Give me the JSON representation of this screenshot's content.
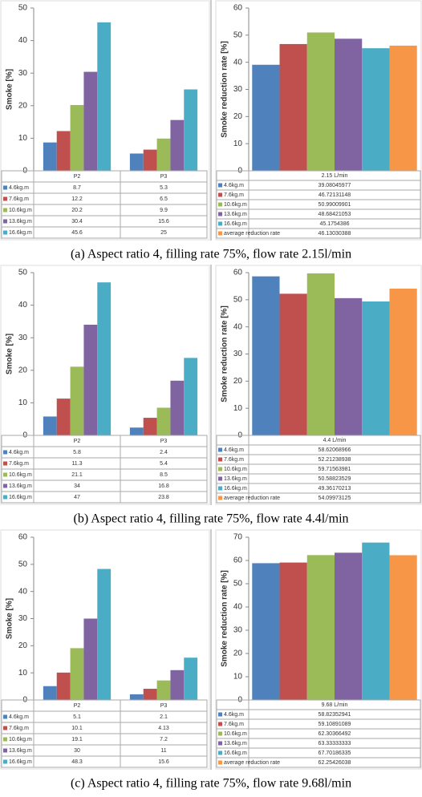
{
  "chart_data": [
    {
      "type": "bar",
      "ylabel": "Smoke [%]",
      "categories": [
        "P2",
        "P3"
      ],
      "ylim": [
        0,
        50
      ],
      "yticks": [
        0,
        10,
        20,
        30,
        40,
        50
      ],
      "series": [
        {
          "name": "4.6kg.m",
          "color": "#4f81bd",
          "values": [
            8.7,
            5.3
          ]
        },
        {
          "name": "7.6kg.m",
          "color": "#c0504d",
          "values": [
            12.2,
            6.5
          ]
        },
        {
          "name": "10.6kg.m",
          "color": "#9bbb59",
          "values": [
            20.2,
            9.9
          ]
        },
        {
          "name": "13.6kg.m",
          "color": "#8064a2",
          "values": [
            30.4,
            15.6
          ]
        },
        {
          "name": "16.6kg.m",
          "color": "#4bacc6",
          "values": [
            45.6,
            25
          ]
        }
      ]
    },
    {
      "type": "bar",
      "ylabel": "Smoke reduction rate [%]",
      "categories": [
        "2.15 L/min"
      ],
      "ylim": [
        0,
        60
      ],
      "yticks": [
        0,
        10,
        20,
        30,
        40,
        50,
        60
      ],
      "series": [
        {
          "name": "4.6kg.m",
          "color": "#4f81bd",
          "values": [
            39.08045977
          ]
        },
        {
          "name": "7.6kg.m",
          "color": "#c0504d",
          "values": [
            46.72131148
          ]
        },
        {
          "name": "10.6kg.m",
          "color": "#9bbb59",
          "values": [
            50.99009901
          ]
        },
        {
          "name": "13.6kg.m",
          "color": "#8064a2",
          "values": [
            48.68421053
          ]
        },
        {
          "name": "16.6kg.m",
          "color": "#4bacc6",
          "values": [
            45.1754386
          ]
        },
        {
          "name": "average reduction rate",
          "color": "#f79646",
          "values": [
            46.13030388
          ]
        }
      ]
    },
    {
      "type": "bar",
      "ylabel": "Smoke [%]",
      "categories": [
        "P2",
        "P3"
      ],
      "ylim": [
        0,
        50
      ],
      "yticks": [
        0,
        10,
        20,
        30,
        40,
        50
      ],
      "series": [
        {
          "name": "4.6kg.m",
          "color": "#4f81bd",
          "values": [
            5.8,
            2.4
          ]
        },
        {
          "name": "7.6kg.m",
          "color": "#c0504d",
          "values": [
            11.3,
            5.4
          ]
        },
        {
          "name": "10.6kg.m",
          "color": "#9bbb59",
          "values": [
            21.1,
            8.5
          ]
        },
        {
          "name": "13.6kg.m",
          "color": "#8064a2",
          "values": [
            34,
            16.8
          ]
        },
        {
          "name": "16.6kg.m",
          "color": "#4bacc6",
          "values": [
            47,
            23.8
          ]
        }
      ]
    },
    {
      "type": "bar",
      "ylabel": "Smoke reduction rate [%]",
      "categories": [
        "4.4 L/min"
      ],
      "ylim": [
        0,
        60
      ],
      "yticks": [
        0,
        10,
        20,
        30,
        40,
        50,
        60
      ],
      "series": [
        {
          "name": "4.6kg.m",
          "color": "#4f81bd",
          "values": [
            58.62068966
          ]
        },
        {
          "name": "7.6kg.m",
          "color": "#c0504d",
          "values": [
            52.21238938
          ]
        },
        {
          "name": "10.6kg.m",
          "color": "#9bbb59",
          "values": [
            59.71563981
          ]
        },
        {
          "name": "13.6kg.m",
          "color": "#8064a2",
          "values": [
            50.58823529
          ]
        },
        {
          "name": "16.6kg.m",
          "color": "#4bacc6",
          "values": [
            49.36170213
          ]
        },
        {
          "name": "average reduction rate",
          "color": "#f79646",
          "values": [
            54.09973125
          ]
        }
      ]
    },
    {
      "type": "bar",
      "ylabel": "Smoke [%]",
      "categories": [
        "P2",
        "P3"
      ],
      "ylim": [
        0,
        60
      ],
      "yticks": [
        0,
        10,
        20,
        30,
        40,
        50,
        60
      ],
      "series": [
        {
          "name": "4.6kg.m",
          "color": "#4f81bd",
          "values": [
            5.1,
            2.1
          ]
        },
        {
          "name": "7.6kg.m",
          "color": "#c0504d",
          "values": [
            10.1,
            4.13
          ]
        },
        {
          "name": "10.6kg.m",
          "color": "#9bbb59",
          "values": [
            19.1,
            7.2
          ]
        },
        {
          "name": "13.6kg.m",
          "color": "#8064a2",
          "values": [
            30,
            11
          ]
        },
        {
          "name": "16.6kg.m",
          "color": "#4bacc6",
          "values": [
            48.3,
            15.6
          ]
        }
      ]
    },
    {
      "type": "bar",
      "ylabel": "Smoke reduction rate [%]",
      "categories": [
        "9.68 L/min"
      ],
      "ylim": [
        0,
        70
      ],
      "yticks": [
        0,
        10,
        20,
        30,
        40,
        50,
        60,
        70
      ],
      "series": [
        {
          "name": "4.6kg.m",
          "color": "#4f81bd",
          "values": [
            58.82352941
          ]
        },
        {
          "name": "7.6kg.m",
          "color": "#c0504d",
          "values": [
            59.10891089
          ]
        },
        {
          "name": "10.6kg.m",
          "color": "#9bbb59",
          "values": [
            62.30366492
          ]
        },
        {
          "name": "13.6kg.m",
          "color": "#8064a2",
          "values": [
            63.33333333
          ]
        },
        {
          "name": "16.6kg.m",
          "color": "#4bacc6",
          "values": [
            67.70186335
          ]
        },
        {
          "name": "average reduction rate",
          "color": "#f79646",
          "values": [
            62.25426038
          ]
        }
      ]
    }
  ],
  "captions": [
    "(a) Aspect ratio 4, filling rate 75%, flow rate 2.15l/min",
    "(b) Aspect ratio 4, filling rate 75%, flow rate 4.4l/min",
    "(c) Aspect ratio 4, filling rate 75%, flow rate 9.68l/min"
  ]
}
